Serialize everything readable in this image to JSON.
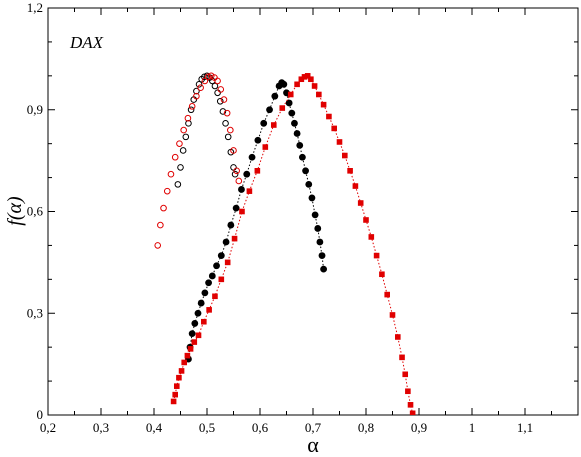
{
  "chart_data": {
    "type": "scatter",
    "title": "",
    "annotation": "DAX",
    "xlabel": "α",
    "ylabel": "f(α)",
    "xlim": [
      0.2,
      1.2
    ],
    "ylim": [
      0,
      1.2
    ],
    "x_ticks": [
      0.2,
      0.3,
      0.4,
      0.5,
      0.6,
      0.7,
      0.8,
      0.9,
      1.0,
      1.1
    ],
    "x_tick_labels": [
      "0,2",
      "0,3",
      "0,4",
      "0,5",
      "0,6",
      "0,7",
      "0,8",
      "0,9",
      "1",
      "1,1"
    ],
    "y_ticks": [
      0,
      0.3,
      0.6,
      0.9,
      1.2
    ],
    "y_tick_labels": [
      "0",
      "0,3",
      "0,6",
      "0,9",
      "1,2"
    ],
    "grid": false,
    "legend": "none",
    "series": [
      {
        "color": "#000000",
        "marker": "open-circle",
        "line": "none",
        "points": [
          [
            0.445,
            0.68
          ],
          [
            0.45,
            0.73
          ],
          [
            0.455,
            0.78
          ],
          [
            0.46,
            0.82
          ],
          [
            0.465,
            0.86
          ],
          [
            0.47,
            0.9
          ],
          [
            0.475,
            0.93
          ],
          [
            0.48,
            0.955
          ],
          [
            0.485,
            0.975
          ],
          [
            0.49,
            0.99
          ],
          [
            0.495,
            0.997
          ],
          [
            0.5,
            1.0
          ],
          [
            0.505,
            0.995
          ],
          [
            0.51,
            0.985
          ],
          [
            0.515,
            0.97
          ],
          [
            0.52,
            0.95
          ],
          [
            0.525,
            0.925
          ],
          [
            0.53,
            0.895
          ],
          [
            0.535,
            0.86
          ],
          [
            0.54,
            0.82
          ],
          [
            0.545,
            0.775
          ],
          [
            0.55,
            0.73
          ],
          [
            0.553,
            0.71
          ]
        ]
      },
      {
        "color": "#e00000",
        "marker": "open-circle",
        "line": "none",
        "points": [
          [
            0.407,
            0.5
          ],
          [
            0.412,
            0.56
          ],
          [
            0.418,
            0.61
          ],
          [
            0.425,
            0.66
          ],
          [
            0.432,
            0.71
          ],
          [
            0.44,
            0.76
          ],
          [
            0.448,
            0.8
          ],
          [
            0.456,
            0.84
          ],
          [
            0.464,
            0.875
          ],
          [
            0.472,
            0.91
          ],
          [
            0.48,
            0.94
          ],
          [
            0.488,
            0.965
          ],
          [
            0.496,
            0.985
          ],
          [
            0.502,
            0.997
          ],
          [
            0.508,
            1.0
          ],
          [
            0.514,
            0.995
          ],
          [
            0.52,
            0.985
          ],
          [
            0.526,
            0.96
          ],
          [
            0.532,
            0.93
          ],
          [
            0.538,
            0.89
          ],
          [
            0.544,
            0.84
          ],
          [
            0.55,
            0.78
          ],
          [
            0.556,
            0.72
          ],
          [
            0.56,
            0.69
          ]
        ]
      },
      {
        "color": "#000000",
        "marker": "filled-circle",
        "line": "dotted",
        "points": [
          [
            0.465,
            0.165
          ],
          [
            0.468,
            0.2
          ],
          [
            0.472,
            0.24
          ],
          [
            0.477,
            0.27
          ],
          [
            0.483,
            0.3
          ],
          [
            0.489,
            0.33
          ],
          [
            0.496,
            0.36
          ],
          [
            0.503,
            0.39
          ],
          [
            0.51,
            0.41
          ],
          [
            0.518,
            0.44
          ],
          [
            0.527,
            0.47
          ],
          [
            0.536,
            0.51
          ],
          [
            0.545,
            0.56
          ],
          [
            0.555,
            0.61
          ],
          [
            0.565,
            0.665
          ],
          [
            0.575,
            0.71
          ],
          [
            0.585,
            0.76
          ],
          [
            0.596,
            0.81
          ],
          [
            0.607,
            0.86
          ],
          [
            0.618,
            0.9
          ],
          [
            0.628,
            0.94
          ],
          [
            0.636,
            0.97
          ],
          [
            0.641,
            0.98
          ],
          [
            0.645,
            0.975
          ],
          [
            0.65,
            0.95
          ],
          [
            0.655,
            0.92
          ],
          [
            0.66,
            0.89
          ],
          [
            0.665,
            0.86
          ],
          [
            0.67,
            0.83
          ],
          [
            0.675,
            0.795
          ],
          [
            0.68,
            0.76
          ],
          [
            0.686,
            0.72
          ],
          [
            0.692,
            0.68
          ],
          [
            0.698,
            0.64
          ],
          [
            0.704,
            0.59
          ],
          [
            0.709,
            0.55
          ],
          [
            0.713,
            0.51
          ],
          [
            0.717,
            0.47
          ],
          [
            0.72,
            0.43
          ]
        ]
      },
      {
        "color": "#e00000",
        "marker": "filled-square",
        "line": "dotted",
        "points": [
          [
            0.437,
            0.04
          ],
          [
            0.44,
            0.06
          ],
          [
            0.443,
            0.085
          ],
          [
            0.447,
            0.11
          ],
          [
            0.452,
            0.13
          ],
          [
            0.457,
            0.155
          ],
          [
            0.463,
            0.175
          ],
          [
            0.469,
            0.195
          ],
          [
            0.476,
            0.215
          ],
          [
            0.484,
            0.235
          ],
          [
            0.494,
            0.275
          ],
          [
            0.504,
            0.31
          ],
          [
            0.515,
            0.35
          ],
          [
            0.527,
            0.4
          ],
          [
            0.539,
            0.45
          ],
          [
            0.552,
            0.52
          ],
          [
            0.566,
            0.6
          ],
          [
            0.58,
            0.66
          ],
          [
            0.595,
            0.72
          ],
          [
            0.61,
            0.79
          ],
          [
            0.626,
            0.855
          ],
          [
            0.642,
            0.905
          ],
          [
            0.658,
            0.945
          ],
          [
            0.67,
            0.975
          ],
          [
            0.678,
            0.99
          ],
          [
            0.684,
            0.997
          ],
          [
            0.69,
            1.0
          ],
          [
            0.696,
            0.99
          ],
          [
            0.703,
            0.97
          ],
          [
            0.711,
            0.945
          ],
          [
            0.72,
            0.915
          ],
          [
            0.73,
            0.88
          ],
          [
            0.74,
            0.845
          ],
          [
            0.75,
            0.805
          ],
          [
            0.76,
            0.765
          ],
          [
            0.77,
            0.72
          ],
          [
            0.78,
            0.675
          ],
          [
            0.79,
            0.625
          ],
          [
            0.8,
            0.575
          ],
          [
            0.81,
            0.525
          ],
          [
            0.82,
            0.47
          ],
          [
            0.83,
            0.415
          ],
          [
            0.84,
            0.355
          ],
          [
            0.85,
            0.295
          ],
          [
            0.86,
            0.23
          ],
          [
            0.868,
            0.17
          ],
          [
            0.874,
            0.12
          ],
          [
            0.879,
            0.07
          ],
          [
            0.884,
            0.03
          ],
          [
            0.888,
            0.005
          ]
        ]
      }
    ]
  }
}
